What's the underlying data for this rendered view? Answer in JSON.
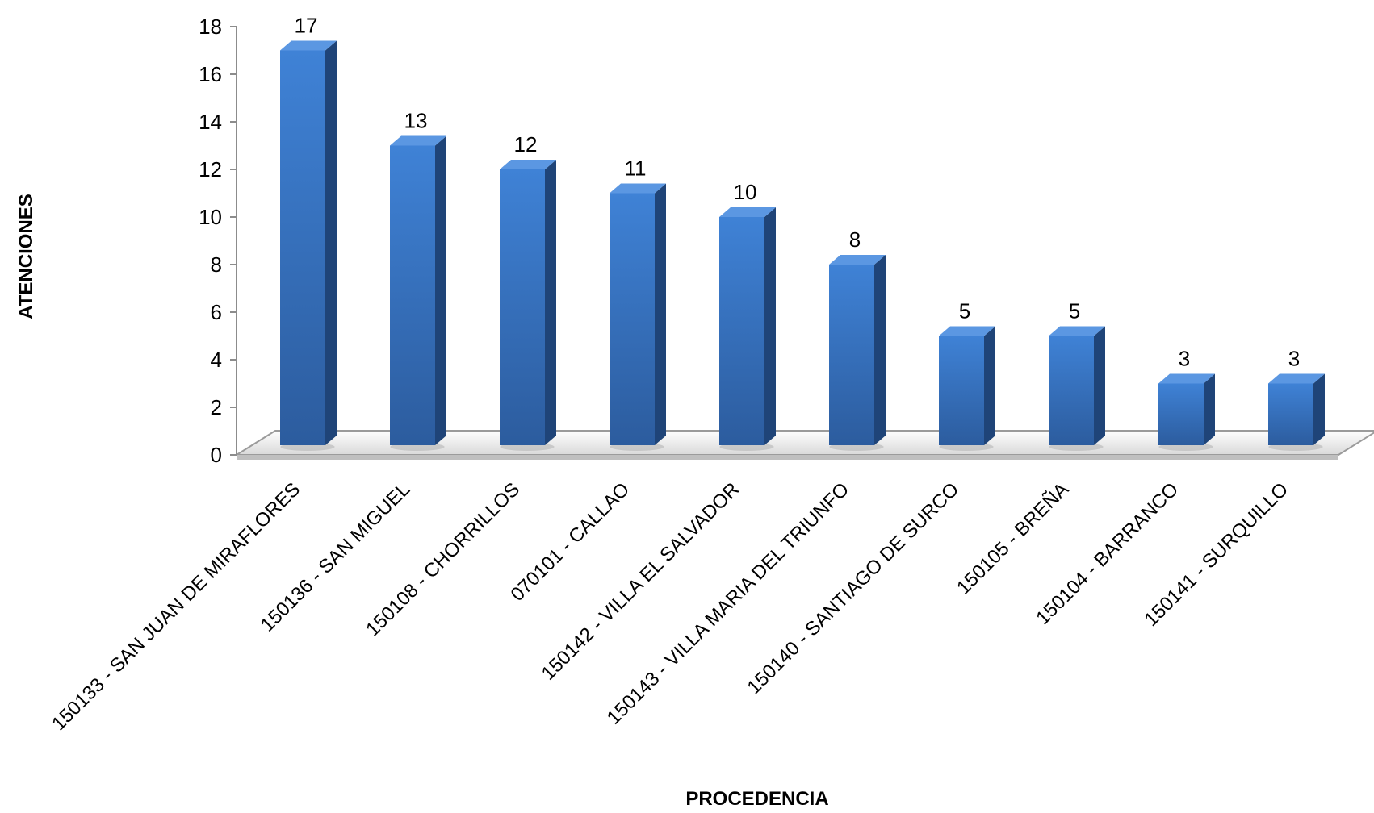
{
  "chart_data": {
    "type": "bar",
    "style": "3d-column",
    "title": "",
    "xlabel": "PROCEDENCIA",
    "ylabel": "ATENCIONES",
    "ylim": [
      0,
      18
    ],
    "yticks": [
      "0",
      "2",
      "4",
      "6",
      "8",
      "10",
      "12",
      "14",
      "16",
      "18"
    ],
    "grid": false,
    "legend": "none",
    "bar_color": "#3a75c4",
    "categories": [
      "150133 - SAN JUAN DE MIRAFLORES",
      "150136 - SAN MIGUEL",
      "150108 - CHORRILLOS",
      "070101 - CALLAO",
      "150142 - VILLA EL SALVADOR",
      "150143 - VILLA MARIA DEL TRIUNFO",
      "150140 - SANTIAGO DE SURCO",
      "150105 - BREÑA",
      "150104 - BARRANCO",
      "150141 - SURQUILLO"
    ],
    "values": [
      17,
      13,
      12,
      11,
      10,
      8,
      5,
      5,
      3,
      3
    ]
  }
}
